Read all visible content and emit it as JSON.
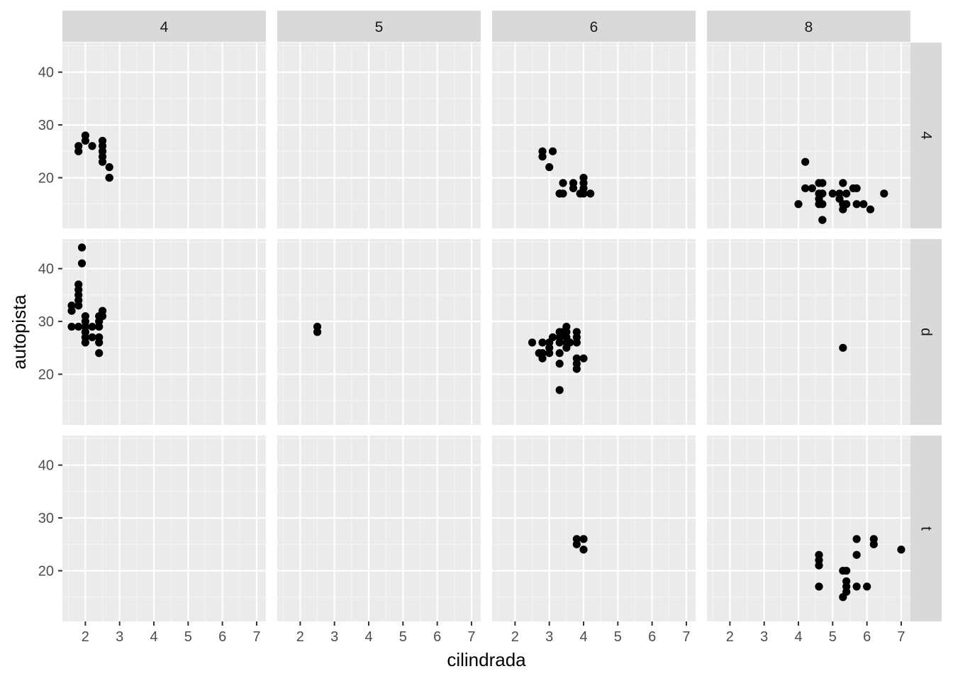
{
  "chart_data": {
    "type": "scatter",
    "facet": {
      "cols_var_levels": [
        "4",
        "5",
        "6",
        "8"
      ],
      "rows_var_levels": [
        "4",
        "d",
        "t"
      ]
    },
    "xlabel": "cilindrada",
    "ylabel": "autopista",
    "xlim": [
      1.33,
      7.27
    ],
    "ylim": [
      10.4,
      45.6
    ],
    "x_ticks": [
      2,
      3,
      4,
      5,
      6,
      7
    ],
    "y_ticks": [
      20,
      30,
      40
    ],
    "grid": true,
    "panels": [
      {
        "col": "4",
        "row": "4",
        "points": [
          [
            1.8,
            26
          ],
          [
            1.8,
            25
          ],
          [
            2.0,
            28
          ],
          [
            2.0,
            27
          ],
          [
            2.2,
            26
          ],
          [
            2.5,
            27
          ],
          [
            2.5,
            26
          ],
          [
            2.5,
            25
          ],
          [
            2.5,
            24
          ],
          [
            2.5,
            23
          ],
          [
            2.7,
            22
          ],
          [
            2.7,
            20
          ],
          [
            2.7,
            20
          ]
        ]
      },
      {
        "col": "5",
        "row": "4",
        "points": []
      },
      {
        "col": "6",
        "row": "4",
        "points": [
          [
            2.8,
            25
          ],
          [
            2.8,
            24
          ],
          [
            3.1,
            25
          ],
          [
            3.0,
            22
          ],
          [
            3.3,
            17
          ],
          [
            3.3,
            17
          ],
          [
            3.4,
            17
          ],
          [
            3.4,
            19
          ],
          [
            3.7,
            19
          ],
          [
            3.7,
            18
          ],
          [
            3.9,
            17
          ],
          [
            4.0,
            20
          ],
          [
            4.0,
            19
          ],
          [
            4.0,
            18
          ],
          [
            4.0,
            17
          ],
          [
            4.2,
            17
          ]
        ]
      },
      {
        "col": "8",
        "row": "4",
        "points": [
          [
            4.0,
            15
          ],
          [
            4.2,
            23
          ],
          [
            4.2,
            18
          ],
          [
            4.4,
            18
          ],
          [
            4.6,
            19
          ],
          [
            4.6,
            17
          ],
          [
            4.6,
            16
          ],
          [
            4.6,
            15
          ],
          [
            4.7,
            19
          ],
          [
            4.7,
            17
          ],
          [
            4.7,
            15
          ],
          [
            4.7,
            12
          ],
          [
            4.7,
            12
          ],
          [
            5.0,
            17
          ],
          [
            5.2,
            17
          ],
          [
            5.2,
            16
          ],
          [
            5.3,
            15
          ],
          [
            5.3,
            19
          ],
          [
            5.4,
            17
          ],
          [
            5.4,
            15
          ],
          [
            5.6,
            18
          ],
          [
            5.7,
            18
          ],
          [
            5.7,
            15
          ],
          [
            5.9,
            15
          ],
          [
            6.1,
            14
          ],
          [
            5.3,
            14
          ],
          [
            6.5,
            17
          ]
        ]
      },
      {
        "col": "4",
        "row": "d",
        "points": [
          [
            1.6,
            33
          ],
          [
            1.6,
            32
          ],
          [
            1.6,
            29
          ],
          [
            1.8,
            37
          ],
          [
            1.8,
            36
          ],
          [
            1.8,
            35
          ],
          [
            1.8,
            34
          ],
          [
            1.8,
            33
          ],
          [
            1.8,
            29
          ],
          [
            1.9,
            44
          ],
          [
            1.9,
            41
          ],
          [
            2.0,
            31
          ],
          [
            2.0,
            30
          ],
          [
            2.0,
            29
          ],
          [
            2.0,
            28
          ],
          [
            2.0,
            27
          ],
          [
            2.0,
            26
          ],
          [
            2.2,
            29
          ],
          [
            2.2,
            27
          ],
          [
            2.4,
            31
          ],
          [
            2.4,
            30
          ],
          [
            2.4,
            29
          ],
          [
            2.4,
            27
          ],
          [
            2.4,
            26
          ],
          [
            2.4,
            24
          ],
          [
            2.5,
            32
          ],
          [
            2.5,
            31
          ]
        ]
      },
      {
        "col": "5",
        "row": "d",
        "points": [
          [
            2.5,
            29
          ],
          [
            2.5,
            28
          ]
        ]
      },
      {
        "col": "6",
        "row": "d",
        "points": [
          [
            2.5,
            26
          ],
          [
            2.7,
            24
          ],
          [
            2.8,
            26
          ],
          [
            2.8,
            24
          ],
          [
            2.8,
            23
          ],
          [
            3.0,
            26
          ],
          [
            3.0,
            25
          ],
          [
            3.0,
            24
          ],
          [
            3.1,
            27
          ],
          [
            3.3,
            28
          ],
          [
            3.3,
            27
          ],
          [
            3.3,
            26
          ],
          [
            3.3,
            24
          ],
          [
            3.3,
            22
          ],
          [
            3.3,
            17
          ],
          [
            3.4,
            28
          ],
          [
            3.5,
            29
          ],
          [
            3.5,
            28
          ],
          [
            3.5,
            27
          ],
          [
            3.5,
            26
          ],
          [
            3.5,
            25
          ],
          [
            3.6,
            26
          ],
          [
            3.8,
            28
          ],
          [
            3.8,
            27
          ],
          [
            3.8,
            26
          ],
          [
            3.8,
            23
          ],
          [
            3.8,
            22
          ],
          [
            3.8,
            21
          ],
          [
            4.0,
            23
          ]
        ]
      },
      {
        "col": "8",
        "row": "d",
        "points": [
          [
            5.3,
            25
          ]
        ]
      },
      {
        "col": "4",
        "row": "t",
        "points": []
      },
      {
        "col": "5",
        "row": "t",
        "points": []
      },
      {
        "col": "6",
        "row": "t",
        "points": [
          [
            3.8,
            26
          ],
          [
            3.8,
            25
          ],
          [
            4.0,
            26
          ],
          [
            4.0,
            24
          ]
        ]
      },
      {
        "col": "8",
        "row": "t",
        "points": [
          [
            4.6,
            23
          ],
          [
            4.6,
            22
          ],
          [
            4.6,
            21
          ],
          [
            4.6,
            17
          ],
          [
            5.3,
            20
          ],
          [
            5.3,
            15
          ],
          [
            5.4,
            20
          ],
          [
            5.4,
            18
          ],
          [
            5.4,
            17
          ],
          [
            5.4,
            16
          ],
          [
            5.7,
            26
          ],
          [
            5.7,
            23
          ],
          [
            5.7,
            17
          ],
          [
            6.0,
            17
          ],
          [
            6.2,
            26
          ],
          [
            6.2,
            25
          ],
          [
            7.0,
            24
          ]
        ]
      }
    ]
  },
  "colors": {
    "panel_background": "#ebebeb",
    "grid_major": "#ffffff",
    "strip_background": "#d9d9d9",
    "point": "#000000",
    "tick_text": "#4d4d4d",
    "strip_text": "#1a1a1a",
    "axis_title": "#000000"
  }
}
